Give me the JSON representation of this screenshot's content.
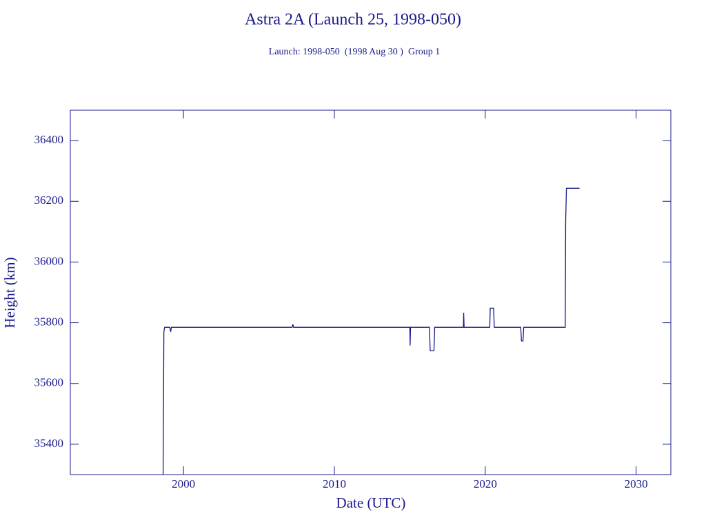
{
  "chart_data": {
    "type": "line",
    "title": "Astra 2A (Launch 25, 1998-050)",
    "subtitle": "Launch: 1998-050  (1998 Aug 30 )  Group 1",
    "x_label": "Date (UTC)",
    "y_label": "Height (km)",
    "xlim": [
      1992.5,
      2032.3
    ],
    "ylim": [
      35300,
      36500
    ],
    "xticks": [
      2000,
      2010,
      2020,
      2030
    ],
    "yticks": [
      35400,
      35600,
      35800,
      36000,
      36200,
      36400
    ],
    "color": "#1a1a8c",
    "series": [
      {
        "name": "Height",
        "color": "#1a1a8c",
        "x": [
          1998.65,
          1998.7,
          1998.75,
          1999.1,
          1999.15,
          1999.2,
          2007.2,
          2007.25,
          2007.3,
          2015.0,
          2015.02,
          2015.05,
          2016.3,
          2016.35,
          2016.6,
          2016.65,
          2018.55,
          2018.57,
          2018.6,
          2020.3,
          2020.33,
          2020.55,
          2020.6,
          2022.35,
          2022.4,
          2022.5,
          2022.55,
          2025.3,
          2025.33,
          2025.38,
          2026.25
        ],
        "values": [
          35300,
          35770,
          35785,
          35785,
          35770,
          35785,
          35785,
          35795,
          35785,
          35785,
          35725,
          35785,
          35785,
          35708,
          35708,
          35785,
          35785,
          35833,
          35785,
          35785,
          35848,
          35848,
          35785,
          35785,
          35740,
          35740,
          35785,
          35785,
          36135,
          36243,
          36243
        ]
      }
    ]
  }
}
